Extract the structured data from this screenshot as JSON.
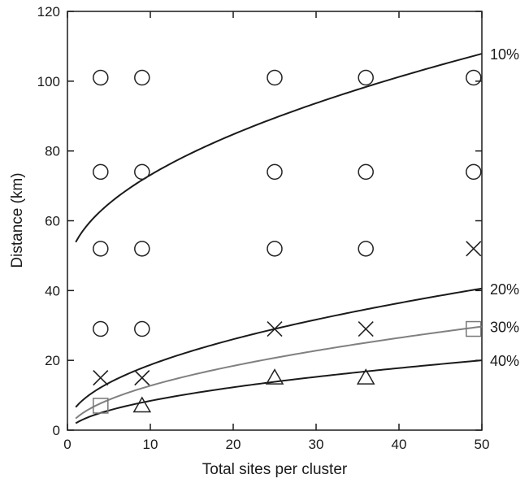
{
  "chart_data": {
    "type": "scatter",
    "title": "",
    "xlabel": "Total sites per cluster",
    "ylabel": "Distance (km)",
    "xlim": [
      0,
      50
    ],
    "ylim": [
      0,
      120
    ],
    "xticks": [
      0,
      10,
      20,
      30,
      40,
      50
    ],
    "yticks": [
      0,
      20,
      40,
      60,
      80,
      100,
      120
    ],
    "grid": false,
    "points": [
      {
        "marker": "circle",
        "x": 4,
        "y": 101
      },
      {
        "marker": "circle",
        "x": 9,
        "y": 101
      },
      {
        "marker": "circle",
        "x": 25,
        "y": 101
      },
      {
        "marker": "circle",
        "x": 36,
        "y": 101
      },
      {
        "marker": "circle",
        "x": 49,
        "y": 101
      },
      {
        "marker": "circle",
        "x": 4,
        "y": 74
      },
      {
        "marker": "circle",
        "x": 9,
        "y": 74
      },
      {
        "marker": "circle",
        "x": 25,
        "y": 74
      },
      {
        "marker": "circle",
        "x": 36,
        "y": 74
      },
      {
        "marker": "circle",
        "x": 49,
        "y": 74
      },
      {
        "marker": "circle",
        "x": 4,
        "y": 52
      },
      {
        "marker": "circle",
        "x": 9,
        "y": 52
      },
      {
        "marker": "circle",
        "x": 25,
        "y": 52
      },
      {
        "marker": "circle",
        "x": 36,
        "y": 52
      },
      {
        "marker": "cross",
        "x": 49,
        "y": 52
      },
      {
        "marker": "circle",
        "x": 4,
        "y": 29
      },
      {
        "marker": "circle",
        "x": 9,
        "y": 29
      },
      {
        "marker": "cross",
        "x": 25,
        "y": 29
      },
      {
        "marker": "cross",
        "x": 36,
        "y": 29
      },
      {
        "marker": "square",
        "x": 49,
        "y": 29
      },
      {
        "marker": "cross",
        "x": 4,
        "y": 15
      },
      {
        "marker": "cross",
        "x": 9,
        "y": 15
      },
      {
        "marker": "triangle",
        "x": 25,
        "y": 15
      },
      {
        "marker": "triangle",
        "x": 36,
        "y": 15
      },
      {
        "marker": "square",
        "x": 4,
        "y": 7
      },
      {
        "marker": "triangle",
        "x": 9,
        "y": 7
      }
    ],
    "curves": [
      {
        "label": "10%",
        "color": "#1a1a1a",
        "a": 45.0,
        "b": 8.89,
        "x_from": 1,
        "x_to": 50
      },
      {
        "label": "20%",
        "color": "#1a1a1a",
        "a": 1.0,
        "b": 5.6,
        "x_from": 1,
        "x_to": 50
      },
      {
        "label": "30%",
        "color": "#808080",
        "a": -1.0,
        "b": 4.34,
        "x_from": 1,
        "x_to": 50
      },
      {
        "label": "40%",
        "color": "#1a1a1a",
        "a": -1.0,
        "b": 2.97,
        "x_from": 1,
        "x_to": 50
      }
    ],
    "marker_color": "#222222",
    "square_color": "#777777"
  }
}
